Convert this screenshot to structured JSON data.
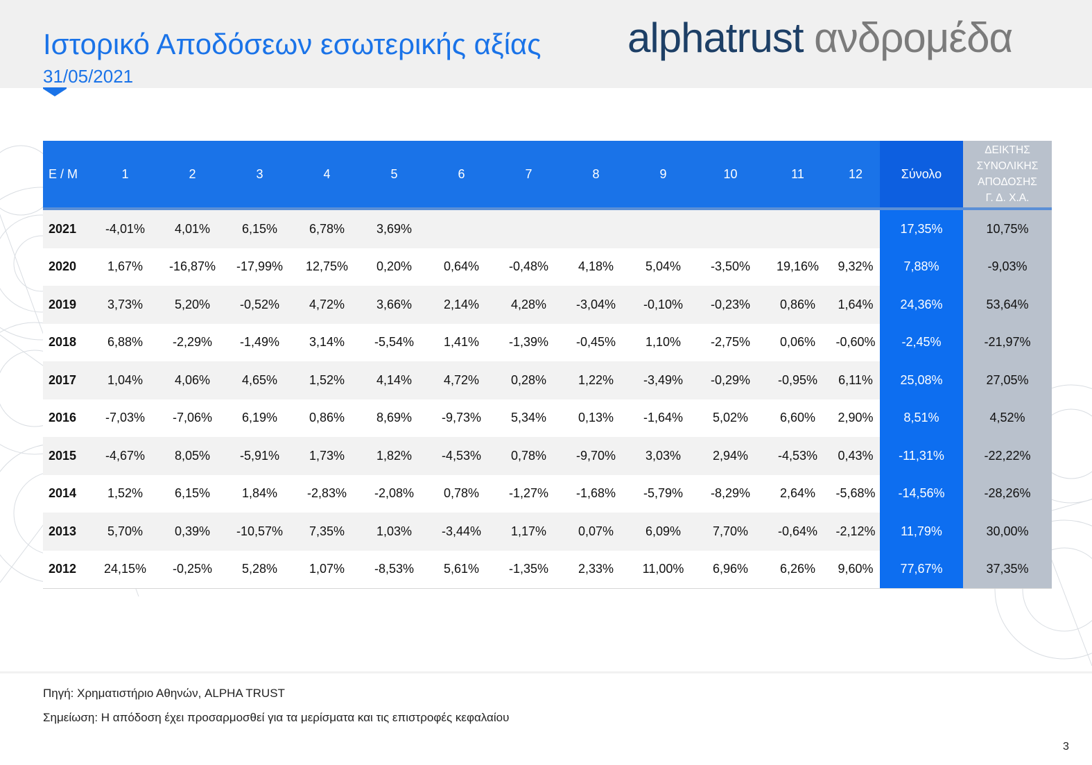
{
  "header": {
    "title": "Ιστορικό Αποδόσεων εσωτερικής αξίας",
    "date": "31/05/2021",
    "brand_primary": "alphatrust",
    "brand_secondary": "ανδρομέδα"
  },
  "colors": {
    "accent_blue": "#1a73e8",
    "total_column_blue": "#0d6ef0",
    "index_column_grey": "#b9c1cc",
    "brand_dark_blue": "#1d3f66",
    "brand_grey": "#7b7b7b"
  },
  "table": {
    "headers": [
      "Ε / Μ",
      "1",
      "2",
      "3",
      "4",
      "5",
      "6",
      "7",
      "8",
      "9",
      "10",
      "11",
      "12",
      "Σύνολο"
    ],
    "index_header_lines": [
      "ΔΕΙΚΤΗΣ",
      "ΣΥΝΟΛΙΚΗΣ",
      "ΑΠΟΔΟΣΗΣ",
      "Γ. Δ. Χ.Α."
    ],
    "rows": [
      {
        "year": "2021",
        "months": [
          "-4,01%",
          "4,01%",
          "6,15%",
          "6,78%",
          "3,69%",
          "",
          "",
          "",
          "",
          "",
          "",
          ""
        ],
        "total": "17,35%",
        "index": "10,75%"
      },
      {
        "year": "2020",
        "months": [
          "1,67%",
          "-16,87%",
          "-17,99%",
          "12,75%",
          "0,20%",
          "0,64%",
          "-0,48%",
          "4,18%",
          "5,04%",
          "-3,50%",
          "19,16%",
          "9,32%"
        ],
        "total": "7,88%",
        "index": "-9,03%"
      },
      {
        "year": "2019",
        "months": [
          "3,73%",
          "5,20%",
          "-0,52%",
          "4,72%",
          "3,66%",
          "2,14%",
          "4,28%",
          "-3,04%",
          "-0,10%",
          "-0,23%",
          "0,86%",
          "1,64%"
        ],
        "total": "24,36%",
        "index": "53,64%"
      },
      {
        "year": "2018",
        "months": [
          "6,88%",
          "-2,29%",
          "-1,49%",
          "3,14%",
          "-5,54%",
          "1,41%",
          "-1,39%",
          "-0,45%",
          "1,10%",
          "-2,75%",
          "0,06%",
          "-0,60%"
        ],
        "total": "-2,45%",
        "index": "-21,97%"
      },
      {
        "year": "2017",
        "months": [
          "1,04%",
          "4,06%",
          "4,65%",
          "1,52%",
          "4,14%",
          "4,72%",
          "0,28%",
          "1,22%",
          "-3,49%",
          "-0,29%",
          "-0,95%",
          "6,11%"
        ],
        "total": "25,08%",
        "index": "27,05%"
      },
      {
        "year": "2016",
        "months": [
          "-7,03%",
          "-7,06%",
          "6,19%",
          "0,86%",
          "8,69%",
          "-9,73%",
          "5,34%",
          "0,13%",
          "-1,64%",
          "5,02%",
          "6,60%",
          "2,90%"
        ],
        "total": "8,51%",
        "index": "4,52%"
      },
      {
        "year": "2015",
        "months": [
          "-4,67%",
          "8,05%",
          "-5,91%",
          "1,73%",
          "1,82%",
          "-4,53%",
          "0,78%",
          "-9,70%",
          "3,03%",
          "2,94%",
          "-4,53%",
          "0,43%"
        ],
        "total": "-11,31%",
        "index": "-22,22%"
      },
      {
        "year": "2014",
        "months": [
          "1,52%",
          "6,15%",
          "1,84%",
          "-2,83%",
          "-2,08%",
          "0,78%",
          "-1,27%",
          "-1,68%",
          "-5,79%",
          "-8,29%",
          "2,64%",
          "-5,68%"
        ],
        "total": "-14,56%",
        "index": "-28,26%"
      },
      {
        "year": "2013",
        "months": [
          "5,70%",
          "0,39%",
          "-10,57%",
          "7,35%",
          "1,03%",
          "-3,44%",
          "1,17%",
          "0,07%",
          "6,09%",
          "7,70%",
          "-0,64%",
          "-2,12%"
        ],
        "total": "11,79%",
        "index": "30,00%"
      },
      {
        "year": "2012",
        "months": [
          "24,15%",
          "-0,25%",
          "5,28%",
          "1,07%",
          "-8,53%",
          "5,61%",
          "-1,35%",
          "2,33%",
          "11,00%",
          "6,96%",
          "6,26%",
          "9,60%"
        ],
        "total": "77,67%",
        "index": "37,35%"
      }
    ]
  },
  "footer": {
    "source": "Πηγή: Χρηματιστήριο Αθηνών, ALPHA TRUST",
    "note": "Σημείωση: Η απόδοση έχει προσαρμοσθεί για τα μερίσματα και τις επιστροφές κεφαλαίου",
    "page_number": "3"
  }
}
